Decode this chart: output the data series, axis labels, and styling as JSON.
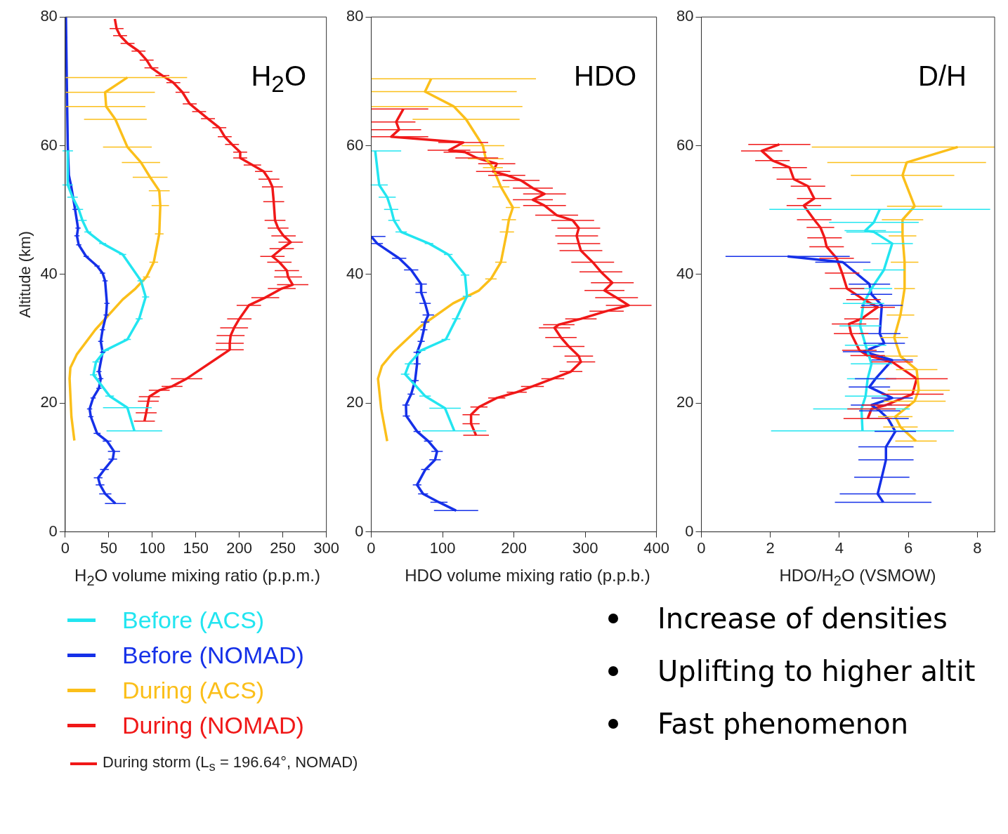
{
  "chart_data": [
    {
      "type": "line",
      "xlabel": "H$_{2}$O volume mixing ratio (p.p.m.)",
      "ylabel": "Altitude (km)",
      "xlim": [
        0,
        300
      ],
      "xticks": [
        0,
        50,
        100,
        150,
        200,
        250,
        300
      ],
      "ylim": [
        0,
        80
      ],
      "yticks": [
        0,
        20,
        40,
        60,
        80
      ],
      "grid": false,
      "marker": "none",
      "legend": "bottom",
      "annotations": [
        "H$_{2}$O",
        "During storm (L$_{s}$ = 196.64°, NOMAD)"
      ],
      "series": [
        {
          "name": "Before (ACS)",
          "color": "#22e5f0",
          "x": [
            79.4,
            71.4,
            51,
            32.4,
            35.3,
            46,
            71.4,
            84.9,
            92.4,
            87,
            66,
            43,
            26,
            19.7,
            15.5,
            8.4,
            2.9,
            2.9
          ],
          "values": [
            15.7,
            19.3,
            21.1,
            24.4,
            26.4,
            28.2,
            29.9,
            33.1,
            36.5,
            39,
            43.1,
            44.8,
            46.6,
            48.4,
            50.1,
            52,
            53.9,
            59.2
          ],
          "xerrors": [
            32,
            28,
            5,
            4,
            4,
            4,
            4,
            4,
            4,
            4,
            4,
            4,
            4,
            5,
            5,
            6,
            6,
            6
          ]
        },
        {
          "name": "Before (NOMAD)",
          "color": "#1530e8",
          "x": [
            57.6,
            46,
            40,
            37.8,
            45,
            54.6,
            56,
            48,
            36.6,
            29.4,
            28,
            32,
            38.7,
            40.8,
            38.7,
            42.9,
            40.8,
            42.9,
            47,
            47.9,
            45.8,
            42.9,
            36.6,
            24,
            15.5,
            13.4,
            14.7,
            11.3,
            7,
            4.2,
            2.9,
            1.7,
            0.8
          ],
          "values": [
            4.4,
            5.9,
            7.3,
            8.4,
            9.7,
            11.3,
            12.5,
            14.1,
            15.3,
            17.9,
            19.1,
            20.8,
            22.3,
            23.8,
            24.9,
            27.9,
            29.6,
            31.4,
            33.7,
            35.5,
            39,
            40.2,
            41.3,
            42.8,
            44.6,
            46,
            47.2,
            50.1,
            53.6,
            55.4,
            60,
            70.6,
            80
          ],
          "xerrors": [
            12,
            7,
            5,
            5,
            5,
            5,
            7,
            5,
            4,
            3,
            3,
            3,
            3,
            3,
            3,
            3,
            3,
            3,
            3,
            3,
            3,
            3,
            3,
            3,
            3,
            3,
            3,
            3,
            null,
            null,
            null,
            null,
            null
          ]
        },
        {
          "name": "During (ACS)",
          "color": "#fbbf1a",
          "x": [
            10.5,
            7.1,
            5,
            5.9,
            13.4,
            34.5,
            66,
            80.7,
            93.3,
            101.7,
            108,
            109.2,
            108,
            97.5,
            87,
            71.4,
            57.6,
            47,
            45.8,
            71.4
          ],
          "values": [
            14.2,
            17.9,
            23.8,
            25.5,
            27.6,
            31.4,
            36.1,
            37.8,
            39.6,
            41.9,
            46.3,
            50.7,
            53,
            55.1,
            57.4,
            59.8,
            64.1,
            66.1,
            68.3,
            70.6
          ],
          "xerrors": [
            null,
            null,
            null,
            null,
            null,
            null,
            null,
            null,
            4,
            5,
            5,
            10,
            12,
            20,
            22,
            28,
            36,
            [
              0,
              92
            ],
            [
              0,
              103
            ],
            [
              0,
              140
            ]
          ]
        },
        {
          "name": "During (NOMAD)",
          "color": "#f01818",
          "x": [
            91,
            93,
            95.4,
            96.6,
            108,
            122.7,
            139.5,
            189,
            189,
            190,
            194,
            200,
            210.9,
            229.8,
            248.7,
            261.3,
            256,
            254.6,
            246,
            238,
            248.7,
            259,
            250.8,
            244.5,
            241,
            239.5,
            238,
            234,
            228,
            215,
            201,
            201,
            191.6,
            183.2,
            177,
            164,
            153.8,
            143,
            134.7,
            124.2,
            111.6,
            99,
            93.5,
            84.2,
            71.6,
            63,
            59,
            57
          ],
          "values": [
            17.2,
            18.5,
            20.3,
            21,
            22,
            22.6,
            23.8,
            28.3,
            29.3,
            30.5,
            31.7,
            33.1,
            35.2,
            36.4,
            37.8,
            38.4,
            39.6,
            40.6,
            41.9,
            42.8,
            44,
            45,
            46,
            47.2,
            48.4,
            51.3,
            53.6,
            54.8,
            56,
            57,
            58.1,
            59,
            60.2,
            61.4,
            62.8,
            64.2,
            65.3,
            66.5,
            68.3,
            69.8,
            70.9,
            72.1,
            73.3,
            74.7,
            75.9,
            77.1,
            78.2,
            79.7
          ],
          "xerrors": [
            12,
            12,
            12,
            12,
            12,
            12,
            18,
            16,
            16,
            16,
            16,
            14,
            14,
            16,
            16,
            18,
            16,
            14,
            14,
            14,
            14,
            14,
            14,
            12,
            12,
            12,
            12,
            12,
            10,
            10,
            8,
            8,
            8,
            8,
            8,
            8,
            8,
            8,
            8,
            8,
            8,
            8,
            8,
            8,
            8,
            8,
            8,
            null
          ]
        }
      ]
    },
    {
      "type": "line",
      "xlabel": "HDO volume mixing ratio (p.p.b.)",
      "xlim": [
        0,
        400
      ],
      "xticks": [
        0,
        100,
        200,
        300,
        400
      ],
      "ylim": [
        0,
        80
      ],
      "yticks": [
        0,
        20,
        40,
        60,
        80
      ],
      "grid": false,
      "marker": "none",
      "annotations": [
        "HDO"
      ],
      "series": [
        {
          "color": "#22e5f0",
          "x": [
            116.4,
            103.5,
            75.5,
            47.6,
            53,
            70,
            104.6,
            119.2,
            134.3,
            131.5,
            108,
            81,
            42,
            31.9,
            28,
            22.4,
            11.2,
            5.6
          ],
          "values": [
            15.7,
            19.2,
            21.1,
            24.5,
            26.1,
            28.2,
            29.9,
            33.1,
            36.6,
            39.9,
            43.1,
            44.8,
            46.6,
            48.4,
            50.1,
            52,
            53.9,
            59.2
          ],
          "xerrors": [
            45,
            22,
            8,
            6,
            6,
            6,
            6,
            6,
            6,
            6,
            6,
            6,
            8,
            8,
            10,
            12,
            12,
            [
              0,
              42
            ]
          ]
        },
        {
          "color": "#1530e8",
          "x": [
            119,
            95,
            72.7,
            64.3,
            76,
            89.5,
            92.3,
            80,
            64.3,
            49.2,
            48.7,
            56,
            61.5,
            64.3,
            64.3,
            70,
            73.8,
            75.5,
            80,
            75.5,
            70,
            70,
            56,
            39.2,
            8.4,
            0
          ],
          "values": [
            3.3,
            4.6,
            5.9,
            7.3,
            9.7,
            11.2,
            12.5,
            14.1,
            15.6,
            18,
            19.7,
            21.4,
            23.5,
            26.1,
            27.9,
            29.6,
            31.4,
            32.6,
            33.7,
            35.5,
            37.2,
            38.5,
            40.7,
            42.5,
            44.8,
            45.9
          ],
          "xerrors": [
            31,
            12,
            7,
            6,
            6,
            8,
            8,
            6,
            5,
            5,
            5,
            5,
            5,
            5,
            5,
            5,
            5,
            6,
            8,
            8,
            8,
            8,
            10,
            10,
            8,
            [
              0,
              20
            ]
          ]
        },
        {
          "color": "#fbbf1a",
          "x": [
            22.4,
            14,
            9.5,
            15.1,
            30.8,
            70,
            114.7,
            151,
            167.8,
            181.8,
            190.2,
            193,
            198.6,
            181.8,
            170.6,
            160.5,
            156.6,
            133,
            115.8,
            75.5,
            84
          ],
          "values": [
            14.1,
            19.1,
            23.8,
            25.8,
            27.9,
            32,
            35.5,
            37.5,
            39.3,
            41.9,
            46.6,
            48.5,
            50.4,
            53.6,
            56.6,
            58,
            60,
            64.1,
            66.1,
            68.4,
            70.4
          ],
          "xerrors": [
            null,
            null,
            null,
            null,
            null,
            null,
            null,
            null,
            8,
            8,
            10,
            10,
            10,
            12,
            14,
            25,
            30,
            75,
            [
              0,
              212
            ],
            [
              0,
              204
            ],
            [
              0,
              231
            ]
          ]
        },
        {
          "color": "#f01818",
          "x": [
            147,
            140,
            140,
            151,
            176,
            204,
            226,
            254.5,
            280,
            294,
            291,
            277,
            266,
            257,
            263,
            294,
            330,
            361,
            344,
            327,
            338,
            322,
            310.5,
            294,
            291,
            288,
            291,
            282.5,
            260,
            243,
            226.6,
            243,
            226.6,
            210,
            190,
            171,
            176,
            148,
            131.5,
            109,
            129,
            28,
            39,
            35,
            45
          ],
          "values": [
            15,
            16.8,
            18.2,
            19.4,
            20.8,
            21.7,
            22.6,
            23.8,
            24.9,
            26.4,
            27.3,
            28.8,
            30.2,
            31.7,
            32.2,
            33.1,
            34.3,
            35.2,
            36.4,
            37.5,
            38.7,
            40.4,
            41.9,
            43.7,
            44.8,
            46,
            47.2,
            48.4,
            49.2,
            50.7,
            51.6,
            52.5,
            53.4,
            54.6,
            55.4,
            56,
            57.2,
            58.1,
            59,
            59.3,
            60.5,
            61.4,
            62.5,
            63.7,
            65.7
          ],
          "xerrors": [
            18,
            12,
            12,
            12,
            12,
            14,
            16,
            16,
            16,
            20,
            20,
            22,
            22,
            22,
            22,
            22,
            24,
            32,
            30,
            28,
            30,
            30,
            30,
            30,
            30,
            30,
            30,
            30,
            30,
            30,
            28,
            30,
            28,
            26,
            26,
            24,
            26,
            30,
            30,
            30,
            35,
            [
              0,
              80
            ],
            [
              0,
              70
            ],
            [
              0,
              62
            ],
            [
              0,
              80
            ]
          ]
        }
      ]
    },
    {
      "type": "line",
      "xlabel": "HDO/H$_{2}$O (VSMOW)",
      "xlim": [
        0,
        8.5
      ],
      "xticks": [
        0,
        2,
        4,
        6,
        8
      ],
      "ylim": [
        0,
        80
      ],
      "yticks": [
        0,
        20,
        40,
        60,
        80
      ],
      "grid": false,
      "marker": "none",
      "annotations": [
        "D/H",
        "Increase of densities",
        "Uplifting to higher altit",
        "Fast phenomenon"
      ],
      "series": [
        {
          "color": "#22e5f0",
          "x": [
            4.67,
            4.64,
            4.76,
            4.82,
            4.93,
            4.76,
            4.6,
            4.7,
            4.93,
            5.29,
            5.53,
            5,
            4.75,
            5,
            5.17
          ],
          "values": [
            15.7,
            19.1,
            21.1,
            23.8,
            26.1,
            29,
            32,
            35.5,
            37.8,
            40.7,
            44.8,
            46.6,
            46.8,
            48.1,
            50.1
          ],
          "xerrors": [
            2.65,
            1.4,
            0.6,
            0.6,
            0.6,
            0.6,
            0.6,
            0.6,
            0.6,
            0.6,
            0.6,
            0.8,
            0.6,
            1.3,
            3.2
          ]
        },
        {
          "color": "#1530e8",
          "x": [
            5.27,
            5.11,
            5.23,
            5.35,
            5.35,
            5.62,
            5.41,
            5.17,
            4.93,
            5.53,
            4.87,
            5.05,
            5.53,
            4.7,
            5.3,
            5.17,
            5.23,
            4.93,
            4.87,
            4.1,
            2.5
          ],
          "values": [
            4.6,
            5.9,
            8.5,
            11.2,
            13.2,
            15.6,
            17.6,
            18.8,
            19.7,
            20.8,
            22.5,
            23.8,
            26.7,
            28,
            29.3,
            30.8,
            35.2,
            36.9,
            38.5,
            41.9,
            42.8
          ],
          "xerrors": [
            1.4,
            1.1,
            0.8,
            0.8,
            0.8,
            0.6,
            0.6,
            0.6,
            0.6,
            0.6,
            0.6,
            0.6,
            0.6,
            0.6,
            0.6,
            0.6,
            0.6,
            0.6,
            0.6,
            0.8,
            1.8
          ]
        },
        {
          "color": "#fbbf1a",
          "x": [
            6.22,
            5.77,
            5.62,
            6.18,
            6.3,
            6.24,
            5.77,
            5.59,
            5.77,
            5.89,
            5.89,
            5.83,
            5.83,
            6.18,
            5.83,
            5.95,
            7.43
          ],
          "values": [
            14.1,
            16.3,
            17.9,
            20.3,
            22,
            25.2,
            27.3,
            30.2,
            33.7,
            37.8,
            41.9,
            46,
            48.5,
            50.6,
            55.4,
            57.4,
            59.8
          ],
          "xerrors": [
            0.6,
            0.5,
            0.5,
            0.9,
            0.9,
            0.6,
            0.5,
            0.4,
            0.4,
            0.3,
            0.4,
            0.4,
            0.6,
            0.8,
            1.5,
            2.3,
            [
              3.2,
              8.5
            ]
          ]
        },
        {
          "color": "#f01818",
          "x": [
            4.82,
            4.93,
            5.35,
            6.12,
            6.24,
            5.53,
            4.82,
            4.58,
            4.34,
            4.28,
            4.64,
            5.11,
            4.7,
            4.22,
            4.08,
            3.92,
            3.63,
            3.57,
            3.45,
            3.27,
            2.97,
            3.27,
            3.09,
            2.68,
            2.56,
            2.06,
            1.75,
            2.26
          ],
          "values": [
            17.6,
            19.1,
            19.7,
            21.4,
            23.8,
            26.4,
            27.4,
            28.2,
            30.8,
            32.3,
            33.1,
            34.9,
            36.1,
            37.8,
            40.2,
            42.5,
            44.3,
            45.7,
            47.3,
            48.5,
            50.7,
            51.8,
            53.7,
            54.8,
            56.6,
            57.7,
            59.2,
            60.2
          ],
          "xerrors": [
            0.7,
            0.7,
            0.7,
            0.9,
            0.9,
            0.6,
            0.5,
            0.5,
            0.5,
            0.5,
            0.5,
            0.5,
            0.5,
            0.5,
            0.5,
            0.5,
            0.5,
            0.5,
            0.4,
            0.5,
            0.5,
            0.5,
            0.5,
            0.5,
            0.5,
            0.5,
            0.6,
            0.9
          ]
        }
      ]
    }
  ]
}
